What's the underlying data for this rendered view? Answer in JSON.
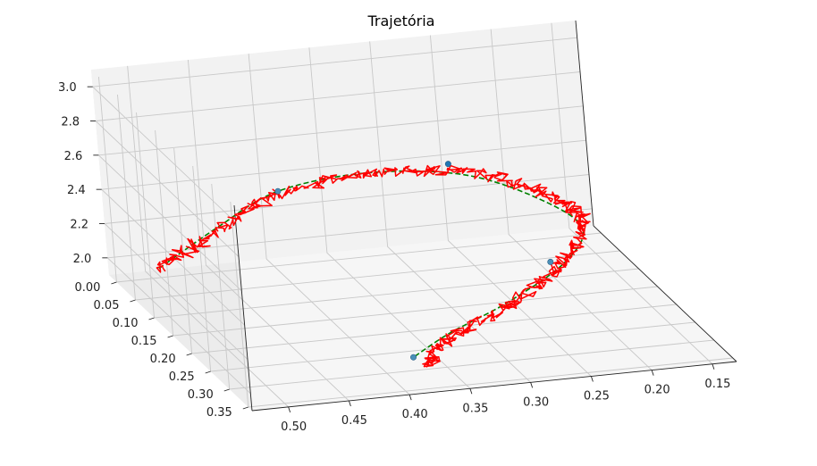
{
  "chart_data": {
    "type": "line3d",
    "title": "Trajetória",
    "xlabel": "",
    "ylabel": "",
    "zlabel": "",
    "x_axis": {
      "ticks": [
        0.5,
        0.45,
        0.4,
        0.35,
        0.3,
        0.25,
        0.2,
        0.15
      ],
      "tick_labels": [
        "0.50",
        "0.45",
        "0.40",
        "0.35",
        "0.30",
        "0.25",
        "0.20",
        "0.15"
      ],
      "range": [
        0.13,
        0.53
      ]
    },
    "y_axis": {
      "ticks": [
        0.0,
        0.05,
        0.1,
        0.15,
        0.2,
        0.25,
        0.3,
        0.35
      ],
      "tick_labels": [
        "0.00",
        "0.05",
        "0.10",
        "0.15",
        "0.20",
        "0.25",
        "0.30",
        "0.35"
      ],
      "range": [
        -0.02,
        0.36
      ]
    },
    "z_axis": {
      "ticks": [
        2.0,
        2.2,
        2.4,
        2.6,
        2.8,
        3.0
      ],
      "tick_labels": [
        "2.0",
        "2.2",
        "2.4",
        "2.6",
        "2.8",
        "3.0"
      ],
      "range": [
        1.9,
        3.1
      ]
    },
    "grid": true,
    "series": [
      {
        "style": "dashed",
        "color": "#008000",
        "points": [
          [
            0.5,
            0.02,
            2.0
          ],
          [
            0.45,
            0.02,
            2.2
          ],
          [
            0.4,
            0.03,
            2.4
          ],
          [
            0.33,
            0.05,
            2.5
          ],
          [
            0.26,
            0.08,
            2.5
          ],
          [
            0.21,
            0.12,
            2.4
          ],
          [
            0.19,
            0.16,
            2.3
          ],
          [
            0.22,
            0.2,
            2.2
          ],
          [
            0.28,
            0.24,
            2.1
          ],
          [
            0.34,
            0.28,
            2.05
          ],
          [
            0.38,
            0.31,
            2.0
          ]
        ]
      },
      {
        "style": "solid-noisy",
        "color": "#ff0000",
        "points": [
          [
            0.5,
            0.02,
            2.0
          ],
          [
            0.45,
            0.02,
            2.18
          ],
          [
            0.4,
            0.03,
            2.38
          ],
          [
            0.33,
            0.05,
            2.5
          ],
          [
            0.26,
            0.08,
            2.52
          ],
          [
            0.21,
            0.12,
            2.45
          ],
          [
            0.19,
            0.16,
            2.35
          ],
          [
            0.22,
            0.2,
            2.2
          ],
          [
            0.28,
            0.24,
            2.08
          ],
          [
            0.34,
            0.28,
            2.02
          ],
          [
            0.37,
            0.32,
            1.98
          ]
        ]
      }
    ],
    "markers": [
      {
        "point": [
          0.4,
          0.03,
          2.4
        ],
        "color": "#4a90b8"
      },
      {
        "point": [
          0.27,
          0.07,
          2.55
        ],
        "color": "#1f77b4"
      },
      {
        "point": [
          0.23,
          0.2,
          2.22
        ],
        "color": "#4a90b8"
      },
      {
        "point": [
          0.38,
          0.31,
          2.0
        ],
        "color": "#4a90b8"
      }
    ],
    "colors": {
      "grid": "#c8c8c8",
      "pane_left": "#ececec",
      "pane_right": "#f2f2f2",
      "pane_floor": "#f6f6f6"
    }
  }
}
